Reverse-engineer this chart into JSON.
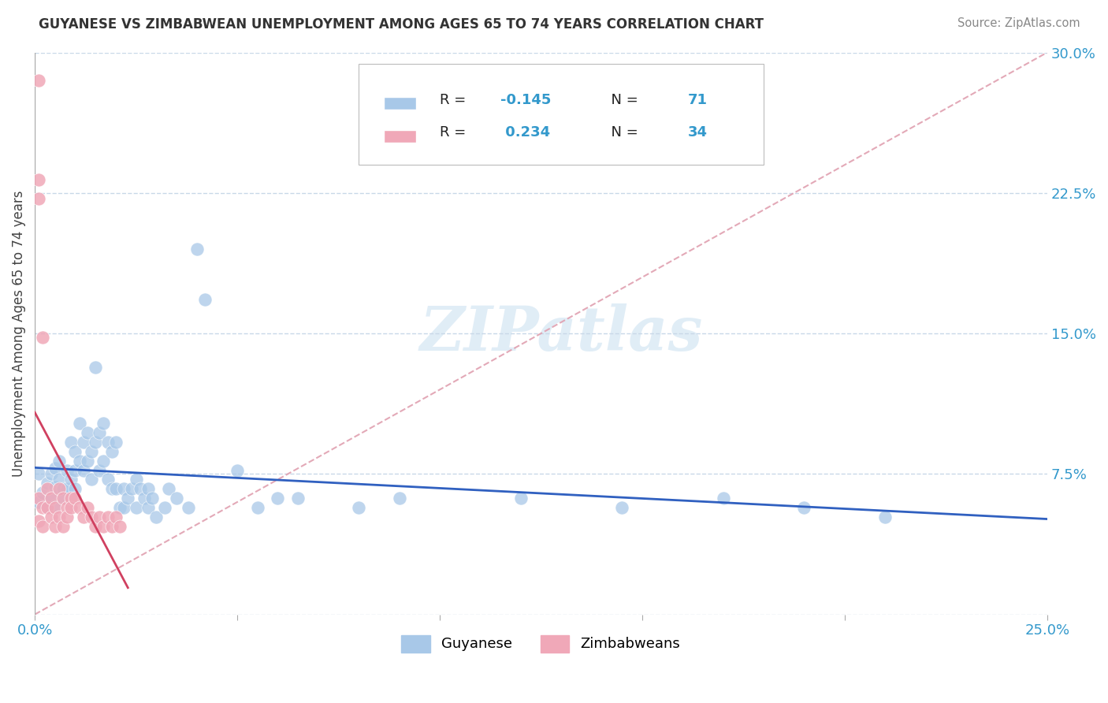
{
  "title": "GUYANESE VS ZIMBABWEAN UNEMPLOYMENT AMONG AGES 65 TO 74 YEARS CORRELATION CHART",
  "source": "Source: ZipAtlas.com",
  "ylabel": "Unemployment Among Ages 65 to 74 years",
  "xlim": [
    0.0,
    0.25
  ],
  "ylim": [
    0.0,
    0.3
  ],
  "xticks": [
    0.0,
    0.05,
    0.1,
    0.15,
    0.2,
    0.25
  ],
  "yticks": [
    0.0,
    0.075,
    0.15,
    0.225,
    0.3
  ],
  "blue_color": "#a8c8e8",
  "pink_color": "#f0a8b8",
  "trend_blue": "#3060c0",
  "trend_pink": "#d04060",
  "diag_color": "#e0a0b0",
  "background_color": "#ffffff",
  "guyanese_x": [
    0.001,
    0.001,
    0.002,
    0.003,
    0.003,
    0.004,
    0.004,
    0.005,
    0.005,
    0.005,
    0.006,
    0.006,
    0.007,
    0.007,
    0.008,
    0.008,
    0.009,
    0.009,
    0.01,
    0.01,
    0.01,
    0.011,
    0.011,
    0.012,
    0.012,
    0.013,
    0.013,
    0.014,
    0.014,
    0.015,
    0.015,
    0.016,
    0.016,
    0.017,
    0.017,
    0.018,
    0.018,
    0.019,
    0.019,
    0.02,
    0.02,
    0.021,
    0.022,
    0.022,
    0.023,
    0.024,
    0.025,
    0.025,
    0.026,
    0.027,
    0.028,
    0.028,
    0.029,
    0.03,
    0.032,
    0.033,
    0.035,
    0.038,
    0.04,
    0.042,
    0.05,
    0.055,
    0.06,
    0.065,
    0.08,
    0.09,
    0.12,
    0.145,
    0.17,
    0.19,
    0.21
  ],
  "guyanese_y": [
    0.06,
    0.075,
    0.065,
    0.07,
    0.058,
    0.075,
    0.063,
    0.078,
    0.068,
    0.058,
    0.082,
    0.072,
    0.067,
    0.062,
    0.077,
    0.067,
    0.092,
    0.072,
    0.087,
    0.077,
    0.067,
    0.102,
    0.082,
    0.092,
    0.077,
    0.097,
    0.082,
    0.087,
    0.072,
    0.132,
    0.092,
    0.097,
    0.077,
    0.102,
    0.082,
    0.092,
    0.072,
    0.087,
    0.067,
    0.092,
    0.067,
    0.057,
    0.067,
    0.057,
    0.062,
    0.067,
    0.072,
    0.057,
    0.067,
    0.062,
    0.067,
    0.057,
    0.062,
    0.052,
    0.057,
    0.067,
    0.062,
    0.057,
    0.195,
    0.168,
    0.077,
    0.057,
    0.062,
    0.062,
    0.057,
    0.062,
    0.062,
    0.057,
    0.062,
    0.057,
    0.052
  ],
  "zimbabwean_x": [
    0.001,
    0.001,
    0.001,
    0.001,
    0.001,
    0.002,
    0.002,
    0.002,
    0.003,
    0.003,
    0.004,
    0.004,
    0.005,
    0.005,
    0.006,
    0.006,
    0.007,
    0.007,
    0.008,
    0.008,
    0.009,
    0.009,
    0.01,
    0.011,
    0.012,
    0.013,
    0.014,
    0.015,
    0.016,
    0.017,
    0.018,
    0.019,
    0.02,
    0.021
  ],
  "zimbabwean_y": [
    0.285,
    0.232,
    0.222,
    0.062,
    0.05,
    0.148,
    0.057,
    0.047,
    0.067,
    0.057,
    0.062,
    0.052,
    0.057,
    0.047,
    0.067,
    0.052,
    0.062,
    0.047,
    0.057,
    0.052,
    0.062,
    0.057,
    0.062,
    0.057,
    0.052,
    0.057,
    0.052,
    0.047,
    0.052,
    0.047,
    0.052,
    0.047,
    0.052,
    0.047
  ]
}
